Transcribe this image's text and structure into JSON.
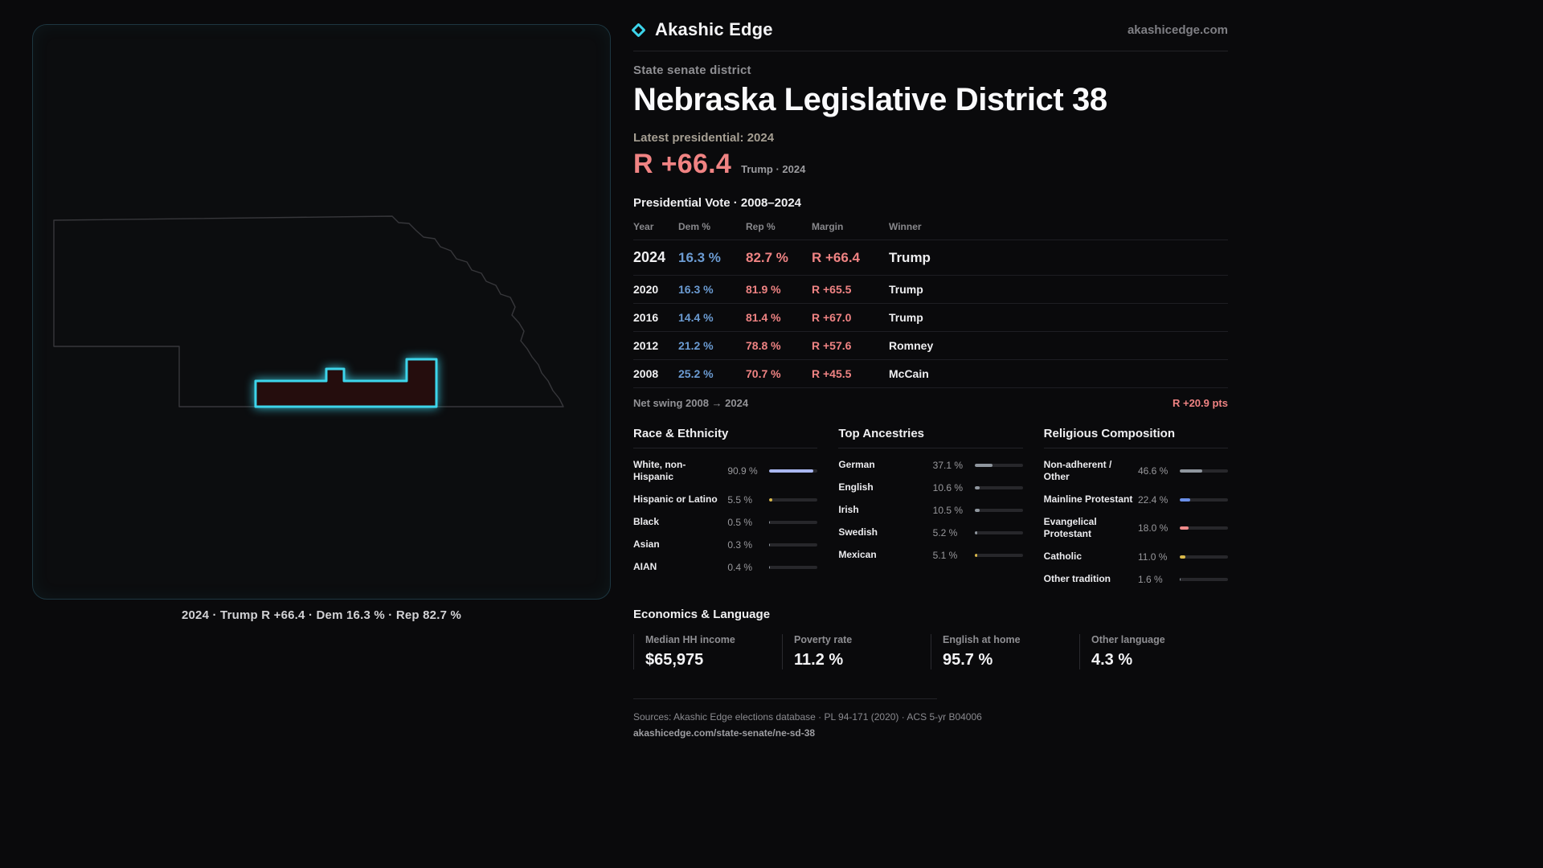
{
  "brand": {
    "name": "Akashic Edge",
    "site": "akashicedge.com"
  },
  "header": {
    "district_type": "State senate district",
    "title": "Nebraska Legislative District 38",
    "latest_label": "Latest presidential: 2024",
    "margin_big": "R +66.4",
    "margin_context": "Trump · 2024"
  },
  "vote_table": {
    "title": "Presidential Vote · 2008–2024",
    "columns": [
      "Year",
      "Dem %",
      "Rep %",
      "Margin",
      "Winner"
    ],
    "rows": [
      {
        "year": "2024",
        "dem": "16.3 %",
        "rep": "82.7 %",
        "margin": "R +66.4",
        "winner": "Trump"
      },
      {
        "year": "2020",
        "dem": "16.3 %",
        "rep": "81.9 %",
        "margin": "R +65.5",
        "winner": "Trump"
      },
      {
        "year": "2016",
        "dem": "14.4 %",
        "rep": "81.4 %",
        "margin": "R +67.0",
        "winner": "Trump"
      },
      {
        "year": "2012",
        "dem": "21.2 %",
        "rep": "78.8 %",
        "margin": "R +57.6",
        "winner": "Romney"
      },
      {
        "year": "2008",
        "dem": "25.2 %",
        "rep": "70.7 %",
        "margin": "R +45.5",
        "winner": "McCain"
      }
    ],
    "net_swing_label": "Net swing 2008 → 2024",
    "net_swing_value": "R +20.9 pts"
  },
  "demographics": {
    "race": {
      "title": "Race & Ethnicity",
      "rows": [
        {
          "label": "White, non-Hispanic",
          "value": "90.9 %",
          "pct": 90.9,
          "color": "#aab7f0"
        },
        {
          "label": "Hispanic or Latino",
          "value": "5.5 %",
          "pct": 5.5,
          "color": "#d9b84a"
        },
        {
          "label": "Black",
          "value": "0.5 %",
          "pct": 0.5,
          "color": "#8f969e"
        },
        {
          "label": "Asian",
          "value": "0.3 %",
          "pct": 0.3,
          "color": "#8f969e"
        },
        {
          "label": "AIAN",
          "value": "0.4 %",
          "pct": 0.4,
          "color": "#8f969e"
        }
      ]
    },
    "ancestries": {
      "title": "Top Ancestries",
      "rows": [
        {
          "label": "German",
          "value": "37.1 %",
          "pct": 37.1,
          "color": "#8f969e"
        },
        {
          "label": "English",
          "value": "10.6 %",
          "pct": 10.6,
          "color": "#8f969e"
        },
        {
          "label": "Irish",
          "value": "10.5 %",
          "pct": 10.5,
          "color": "#8f969e"
        },
        {
          "label": "Swedish",
          "value": "5.2 %",
          "pct": 5.2,
          "color": "#8f969e"
        },
        {
          "label": "Mexican",
          "value": "5.1 %",
          "pct": 5.1,
          "color": "#d9b84a"
        }
      ]
    },
    "religion": {
      "title": "Religious Composition",
      "rows": [
        {
          "label": "Non-adherent / Other",
          "value": "46.6 %",
          "pct": 46.6,
          "color": "#8f969e"
        },
        {
          "label": "Mainline Protestant",
          "value": "22.4 %",
          "pct": 22.4,
          "color": "#6a8fe8"
        },
        {
          "label": "Evangelical Protestant",
          "value": "18.0 %",
          "pct": 18.0,
          "color": "#ef8a8a"
        },
        {
          "label": "Catholic",
          "value": "11.0 %",
          "pct": 11.0,
          "color": "#d9b84a"
        },
        {
          "label": "Other tradition",
          "value": "1.6 %",
          "pct": 1.6,
          "color": "#8f969e"
        }
      ]
    }
  },
  "economics": {
    "title": "Economics & Language",
    "stats": [
      {
        "label": "Median HH income",
        "value": "$65,975"
      },
      {
        "label": "Poverty rate",
        "value": "11.2 %"
      },
      {
        "label": "English at home",
        "value": "95.7 %"
      },
      {
        "label": "Other language",
        "value": "4.3 %"
      }
    ]
  },
  "map": {
    "caption": "2024 · Trump R +66.4 · Dem 16.3 % · Rep 82.7 %"
  },
  "footer": {
    "sources": "Sources: Akashic Edge elections database · PL 94-171 (2020) · ACS 5-yr B04006",
    "permalink": "akashicedge.com/state-senate/ne-sd-38"
  },
  "colors": {
    "accent_cyan": "#3dd5eb",
    "rep_red": "#ef8383",
    "dem_blue": "#6b9bd2"
  }
}
